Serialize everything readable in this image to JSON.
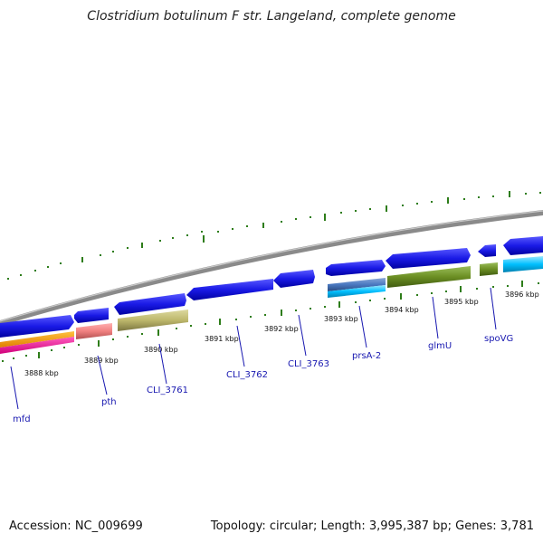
{
  "title": "Clostridium botulinum F str. Langeland, complete genome",
  "footer": {
    "accession": "Accession: NC_009699",
    "topology": "Topology: circular; Length: 3,995,387 bp; Genes: 3,781"
  },
  "ticks": [
    {
      "label": "3888 kbp"
    },
    {
      "label": "3889 kbp"
    },
    {
      "label": "3890 kbp"
    },
    {
      "label": "3891 kbp"
    },
    {
      "label": "3892 kbp"
    },
    {
      "label": "3893 kbp"
    },
    {
      "label": "3894 kbp"
    },
    {
      "label": "3895 kbp"
    },
    {
      "label": "3896 kbp"
    }
  ],
  "genes": [
    {
      "name": "mfd"
    },
    {
      "name": "pth"
    },
    {
      "name": "CLI_3761"
    },
    {
      "name": "CLI_3762"
    },
    {
      "name": "CLI_3763"
    },
    {
      "name": "prsA-2"
    },
    {
      "name": "glmU"
    },
    {
      "name": "spoVG"
    }
  ],
  "colors": {
    "backbone": "#8a8a8a",
    "gene_arrow": "#1a1ae6",
    "tick_marks": "#2e7d1a",
    "gene_label": "#1818b0"
  }
}
